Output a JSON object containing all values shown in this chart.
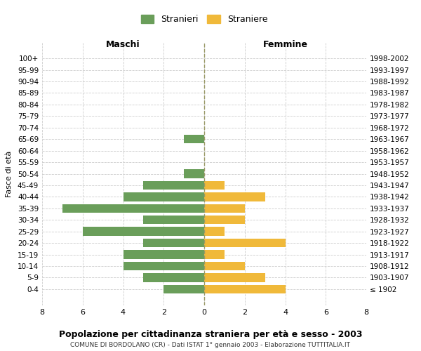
{
  "age_groups": [
    "100+",
    "95-99",
    "90-94",
    "85-89",
    "80-84",
    "75-79",
    "70-74",
    "65-69",
    "60-64",
    "55-59",
    "50-54",
    "45-49",
    "40-44",
    "35-39",
    "30-34",
    "25-29",
    "20-24",
    "15-19",
    "10-14",
    "5-9",
    "0-4"
  ],
  "birth_years": [
    "≤ 1902",
    "1903-1907",
    "1908-1912",
    "1913-1917",
    "1918-1922",
    "1923-1927",
    "1928-1932",
    "1933-1937",
    "1938-1942",
    "1943-1947",
    "1948-1952",
    "1953-1957",
    "1958-1962",
    "1963-1967",
    "1968-1972",
    "1973-1977",
    "1978-1982",
    "1983-1987",
    "1988-1992",
    "1993-1997",
    "1998-2002"
  ],
  "males": [
    0,
    0,
    0,
    0,
    0,
    0,
    0,
    1,
    0,
    0,
    1,
    3,
    4,
    7,
    3,
    6,
    3,
    4,
    4,
    3,
    2
  ],
  "females": [
    0,
    0,
    0,
    0,
    0,
    0,
    0,
    0,
    0,
    0,
    0,
    1,
    3,
    2,
    2,
    1,
    4,
    1,
    2,
    3,
    4
  ],
  "male_color": "#6a9e5a",
  "female_color": "#f0b93a",
  "grid_color": "#cccccc",
  "center_line_color": "#999966",
  "title": "Popolazione per cittadinanza straniera per età e sesso - 2003",
  "subtitle": "COMUNE DI BORDOLANO (CR) - Dati ISTAT 1° gennaio 2003 - Elaborazione TUTTITALIA.IT",
  "ylabel_left": "Fasce di età",
  "xlabel_left": "Maschi",
  "xlabel_right": "Femmine",
  "legend_male": "Stranieri",
  "legend_female": "Straniere",
  "xlim": 8,
  "background_color": "#ffffff"
}
